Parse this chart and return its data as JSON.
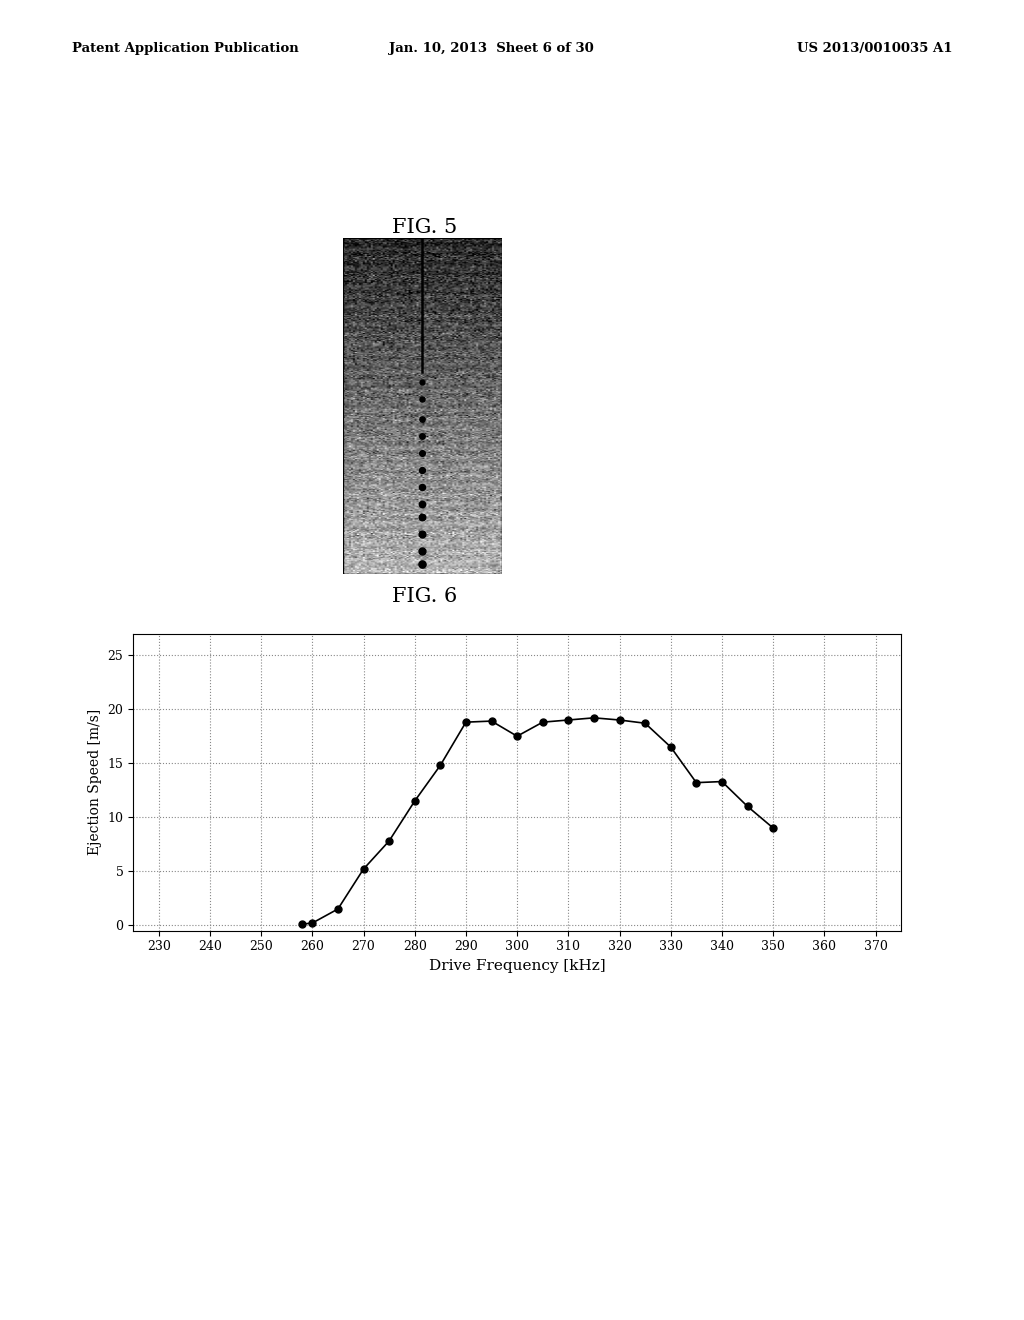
{
  "header_left": "Patent Application Publication",
  "header_mid": "Jan. 10, 2013  Sheet 6 of 30",
  "header_right": "US 2013/0010035 A1",
  "fig5_label": "FIG. 5",
  "fig6_label": "FIG. 6",
  "fig6_xlabel": "Drive Frequency [kHz]",
  "fig6_ylabel": "Ejection Speed [m/s]",
  "fig6_xticks": [
    230,
    240,
    250,
    260,
    270,
    280,
    290,
    300,
    310,
    320,
    330,
    340,
    350,
    360,
    370
  ],
  "fig6_yticks": [
    0,
    5,
    10,
    15,
    20,
    25
  ],
  "fig6_xlim": [
    225,
    375
  ],
  "fig6_ylim": [
    -0.5,
    27
  ],
  "fig6_data_x": [
    258,
    260,
    265,
    270,
    275,
    280,
    285,
    290,
    295,
    300,
    305,
    310,
    315,
    320,
    325,
    330,
    335,
    340,
    345,
    350
  ],
  "fig6_data_y": [
    0.1,
    0.2,
    1.5,
    5.2,
    7.8,
    11.5,
    14.8,
    18.8,
    18.9,
    17.5,
    18.8,
    19.0,
    19.2,
    19.0,
    18.7,
    16.5,
    13.2,
    13.3,
    11.0,
    9.0
  ],
  "background_color": "#ffffff",
  "line_color": "#000000",
  "marker_color": "#000000",
  "grid_color": "#888888"
}
